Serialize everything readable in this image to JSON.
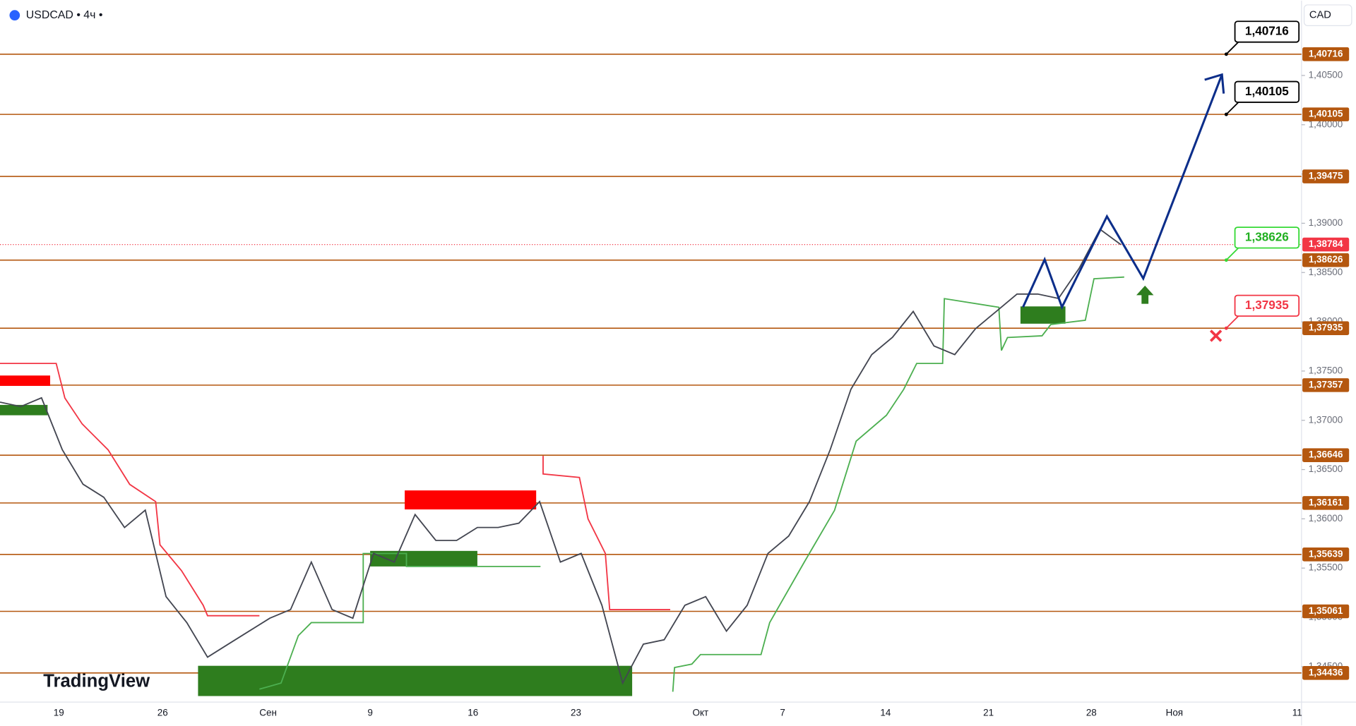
{
  "chart_data": {
    "type": "line",
    "symbol_header": "USDCAD • 4ч •",
    "currency": "CAD",
    "brand": "TradingView",
    "x_labels": [
      "19",
      "26",
      "Сен",
      "9",
      "16",
      "23",
      "Окт",
      "7",
      "14",
      "21",
      "28",
      "Ноя",
      "11"
    ],
    "ylim": [
      1.3414,
      1.4126
    ],
    "yticks": [
      {
        "value": 1.345,
        "label": "1,34500"
      },
      {
        "value": 1.35,
        "label": "1,35000"
      },
      {
        "value": 1.355,
        "label": "1,35500"
      },
      {
        "value": 1.36,
        "label": "1,36000"
      },
      {
        "value": 1.365,
        "label": "1,36500"
      },
      {
        "value": 1.37,
        "label": "1,37000"
      },
      {
        "value": 1.375,
        "label": "1,37500"
      },
      {
        "value": 1.38,
        "label": "1,38000"
      },
      {
        "value": 1.385,
        "label": "1,38500"
      },
      {
        "value": 1.39,
        "label": "1,39000"
      },
      {
        "value": 1.395,
        "label": "1,39500"
      },
      {
        "value": 1.4,
        "label": "1,40000"
      },
      {
        "value": 1.405,
        "label": "1,40500"
      }
    ],
    "color": "#434651",
    "values": [
      1.37184,
      1.3714,
      1.37228,
      1.36702,
      1.36351,
      1.36219,
      1.35912,
      1.36088,
      1.35211,
      1.34947,
      1.34596,
      1.34728,
      1.3486,
      1.34991,
      1.35079,
      1.35561,
      1.35079,
      1.34991,
      1.35649,
      1.35561,
      1.36044,
      1.35781,
      1.35781,
      1.35912,
      1.35912,
      1.35956,
      1.36175,
      1.35561,
      1.35649,
      1.35123,
      1.34333,
      1.34728,
      1.34772,
      1.35123,
      1.35211,
      1.3486,
      1.35123,
      1.35649,
      1.35825,
      1.36175,
      1.36702,
      1.37316,
      1.37667,
      1.37842,
      1.38105,
      1.37754,
      1.37667,
      1.3793,
      1.38105,
      1.38281,
      1.38281,
      1.38237,
      1.38544,
      1.38939,
      1.38784
    ],
    "current_price": {
      "value": 1.38784,
      "label": "1,38784"
    },
    "levels": [
      {
        "value": 1.40716,
        "label": "1,40716"
      },
      {
        "value": 1.40105,
        "label": "1,40105"
      },
      {
        "value": 1.39475,
        "label": "1,39475"
      },
      {
        "value": 1.38626,
        "label": "1,38626"
      },
      {
        "value": 1.37935,
        "label": "1,37935"
      },
      {
        "value": 1.37357,
        "label": "1,37357"
      },
      {
        "value": 1.36646,
        "label": "1,36646"
      },
      {
        "value": 1.36161,
        "label": "1,36161"
      },
      {
        "value": 1.35639,
        "label": "1,35639"
      },
      {
        "value": 1.35061,
        "label": "1,35061"
      },
      {
        "value": 1.34436,
        "label": "1,34436"
      }
    ],
    "level_color": "#b4570f",
    "forecast": {
      "color": "#0c2e8a",
      "values": [
        1.38149,
        1.38632,
        1.38149,
        1.3907,
        1.38439,
        1.40509
      ]
    },
    "callouts": [
      {
        "value": 1.40716,
        "label": "1,40716",
        "color": "#000000"
      },
      {
        "value": 1.40105,
        "label": "1,40105",
        "color": "#000000"
      },
      {
        "value": 1.38626,
        "label": "1,38626",
        "color": "#35d935"
      },
      {
        "value": 1.37935,
        "label": "1,37935",
        "color": "#f23645"
      }
    ]
  }
}
